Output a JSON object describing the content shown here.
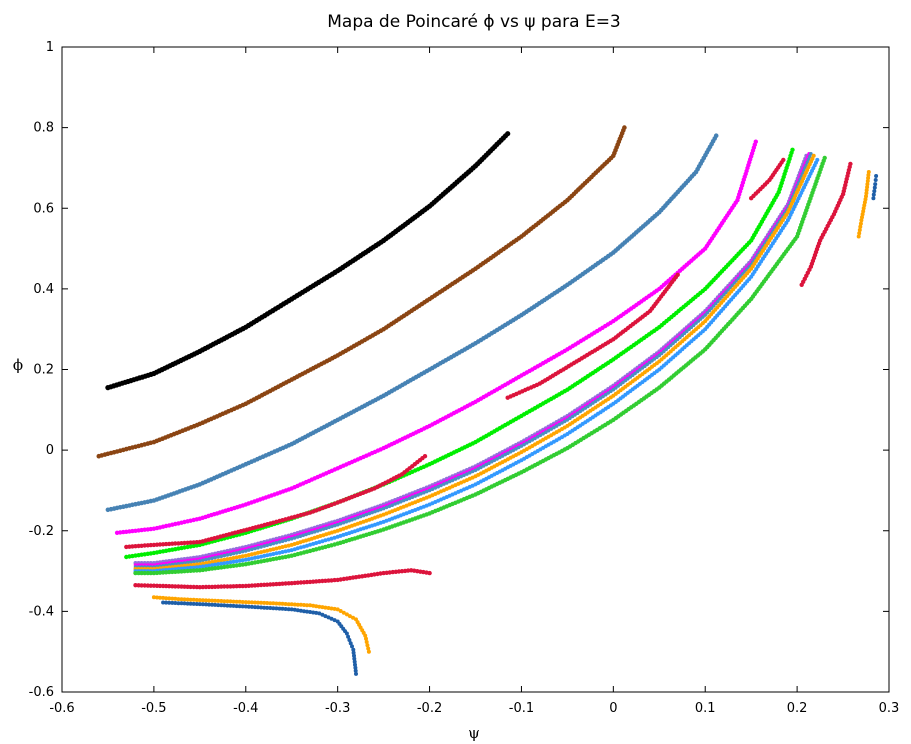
{
  "chart_data": {
    "type": "scatter",
    "title": "Mapa de Poincaré ϕ vs ψ para E=3",
    "xlabel": "ψ",
    "ylabel": "ϕ",
    "xlim": [
      -0.6,
      0.3
    ],
    "ylim": [
      -0.6,
      1.0
    ],
    "x_ticks": [
      -0.6,
      -0.5,
      -0.4,
      -0.3,
      -0.2,
      -0.1,
      0,
      0.1,
      0.2,
      0.3
    ],
    "x_tick_labels": [
      "-0.6",
      "-0.5",
      "-0.4",
      "-0.3",
      "-0.2",
      "-0.1",
      "0",
      "0.1",
      "0.2",
      "0.3"
    ],
    "y_ticks": [
      -0.6,
      -0.4,
      -0.2,
      0,
      0.2,
      0.4,
      0.6,
      0.8,
      1.0
    ],
    "y_tick_labels": [
      "-0.6",
      "-0.4",
      "-0.2",
      "0",
      "0.2",
      "0.4",
      "0.6",
      "0.8",
      "1"
    ],
    "grid": false,
    "legend": false,
    "series": [
      {
        "color": "#000000",
        "marker_size": 2.6,
        "points": [
          [
            -0.55,
            0.155
          ],
          [
            -0.5,
            0.19
          ],
          [
            -0.45,
            0.245
          ],
          [
            -0.4,
            0.305
          ],
          [
            -0.35,
            0.375
          ],
          [
            -0.3,
            0.445
          ],
          [
            -0.25,
            0.52
          ],
          [
            -0.2,
            0.605
          ],
          [
            -0.15,
            0.705
          ],
          [
            -0.115,
            0.785
          ]
        ]
      },
      {
        "color": "#8b4513",
        "marker_size": 2.3,
        "points": [
          [
            -0.56,
            -0.015
          ],
          [
            -0.5,
            0.02
          ],
          [
            -0.45,
            0.065
          ],
          [
            -0.4,
            0.115
          ],
          [
            -0.35,
            0.175
          ],
          [
            -0.3,
            0.235
          ],
          [
            -0.25,
            0.3
          ],
          [
            -0.2,
            0.375
          ],
          [
            -0.15,
            0.45
          ],
          [
            -0.1,
            0.53
          ],
          [
            -0.05,
            0.62
          ],
          [
            0.0,
            0.73
          ],
          [
            0.012,
            0.8
          ]
        ]
      },
      {
        "color": "#4682b4",
        "marker_size": 2.3,
        "points": [
          [
            -0.55,
            -0.148
          ],
          [
            -0.5,
            -0.125
          ],
          [
            -0.45,
            -0.085
          ],
          [
            -0.4,
            -0.035
          ],
          [
            -0.35,
            0.015
          ],
          [
            -0.3,
            0.075
          ],
          [
            -0.25,
            0.135
          ],
          [
            -0.2,
            0.2
          ],
          [
            -0.15,
            0.265
          ],
          [
            -0.1,
            0.335
          ],
          [
            -0.05,
            0.41
          ],
          [
            0.0,
            0.49
          ],
          [
            0.05,
            0.59
          ],
          [
            0.09,
            0.69
          ],
          [
            0.112,
            0.78
          ]
        ]
      },
      {
        "color": "#ff00ff",
        "marker_size": 2.2,
        "points": [
          [
            -0.54,
            -0.205
          ],
          [
            -0.5,
            -0.195
          ],
          [
            -0.45,
            -0.17
          ],
          [
            -0.4,
            -0.135
          ],
          [
            -0.35,
            -0.095
          ],
          [
            -0.3,
            -0.045
          ],
          [
            -0.25,
            0.005
          ],
          [
            -0.2,
            0.06
          ],
          [
            -0.15,
            0.12
          ],
          [
            -0.1,
            0.185
          ],
          [
            -0.05,
            0.25
          ],
          [
            0.0,
            0.32
          ],
          [
            0.05,
            0.4
          ],
          [
            0.1,
            0.5
          ],
          [
            0.135,
            0.62
          ],
          [
            0.155,
            0.765
          ]
        ]
      },
      {
        "color": "#00ee00",
        "marker_size": 2.2,
        "points": [
          [
            -0.53,
            -0.265
          ],
          [
            -0.5,
            -0.255
          ],
          [
            -0.45,
            -0.235
          ],
          [
            -0.4,
            -0.205
          ],
          [
            -0.35,
            -0.17
          ],
          [
            -0.3,
            -0.13
          ],
          [
            -0.25,
            -0.085
          ],
          [
            -0.2,
            -0.035
          ],
          [
            -0.15,
            0.02
          ],
          [
            -0.1,
            0.085
          ],
          [
            -0.05,
            0.15
          ],
          [
            0.0,
            0.225
          ],
          [
            0.05,
            0.305
          ],
          [
            0.1,
            0.4
          ],
          [
            0.15,
            0.52
          ],
          [
            0.18,
            0.64
          ],
          [
            0.195,
            0.745
          ]
        ]
      },
      {
        "color": "#9370db",
        "marker_size": 2.0,
        "points": [
          [
            -0.52,
            -0.28
          ],
          [
            -0.5,
            -0.28
          ],
          [
            -0.45,
            -0.265
          ],
          [
            -0.4,
            -0.24
          ],
          [
            -0.35,
            -0.21
          ],
          [
            -0.3,
            -0.175
          ],
          [
            -0.25,
            -0.135
          ],
          [
            -0.2,
            -0.09
          ],
          [
            -0.15,
            -0.04
          ],
          [
            -0.1,
            0.02
          ],
          [
            -0.05,
            0.085
          ],
          [
            0.0,
            0.16
          ],
          [
            0.05,
            0.245
          ],
          [
            0.1,
            0.345
          ],
          [
            0.15,
            0.47
          ],
          [
            0.19,
            0.61
          ],
          [
            0.21,
            0.73
          ]
        ]
      },
      {
        "color": "#ff00ff",
        "marker_size": 1.8,
        "points": [
          [
            -0.52,
            -0.285
          ],
          [
            -0.5,
            -0.285
          ],
          [
            -0.45,
            -0.27
          ],
          [
            -0.4,
            -0.245
          ],
          [
            -0.35,
            -0.215
          ],
          [
            -0.3,
            -0.18
          ],
          [
            -0.25,
            -0.14
          ],
          [
            -0.2,
            -0.095
          ],
          [
            -0.15,
            -0.045
          ],
          [
            -0.1,
            0.015
          ],
          [
            -0.05,
            0.08
          ],
          [
            0.0,
            0.155
          ],
          [
            0.05,
            0.24
          ],
          [
            0.1,
            0.34
          ],
          [
            0.15,
            0.465
          ],
          [
            0.19,
            0.605
          ],
          [
            0.213,
            0.735
          ]
        ]
      },
      {
        "color": "#4a90c2",
        "marker_size": 1.8,
        "points": [
          [
            -0.52,
            -0.29
          ],
          [
            -0.5,
            -0.29
          ],
          [
            -0.45,
            -0.275
          ],
          [
            -0.4,
            -0.25
          ],
          [
            -0.35,
            -0.22
          ],
          [
            -0.3,
            -0.185
          ],
          [
            -0.25,
            -0.145
          ],
          [
            -0.2,
            -0.1
          ],
          [
            -0.15,
            -0.05
          ],
          [
            -0.1,
            0.01
          ],
          [
            -0.05,
            0.075
          ],
          [
            0.0,
            0.15
          ],
          [
            0.05,
            0.235
          ],
          [
            0.1,
            0.335
          ],
          [
            0.15,
            0.46
          ],
          [
            0.19,
            0.6
          ],
          [
            0.215,
            0.735
          ]
        ]
      },
      {
        "color": "#ffa500",
        "marker_size": 2.0,
        "points": [
          [
            -0.52,
            -0.295
          ],
          [
            -0.5,
            -0.295
          ],
          [
            -0.45,
            -0.283
          ],
          [
            -0.4,
            -0.262
          ],
          [
            -0.35,
            -0.235
          ],
          [
            -0.3,
            -0.2
          ],
          [
            -0.25,
            -0.16
          ],
          [
            -0.2,
            -0.115
          ],
          [
            -0.15,
            -0.065
          ],
          [
            -0.1,
            -0.005
          ],
          [
            -0.05,
            0.06
          ],
          [
            0.0,
            0.135
          ],
          [
            0.05,
            0.22
          ],
          [
            0.1,
            0.32
          ],
          [
            0.15,
            0.45
          ],
          [
            0.19,
            0.59
          ],
          [
            0.218,
            0.73
          ]
        ]
      },
      {
        "color": "#3399ff",
        "marker_size": 2.0,
        "points": [
          [
            -0.52,
            -0.3
          ],
          [
            -0.5,
            -0.3
          ],
          [
            -0.45,
            -0.29
          ],
          [
            -0.4,
            -0.272
          ],
          [
            -0.35,
            -0.248
          ],
          [
            -0.3,
            -0.215
          ],
          [
            -0.25,
            -0.178
          ],
          [
            -0.2,
            -0.135
          ],
          [
            -0.15,
            -0.085
          ],
          [
            -0.1,
            -0.025
          ],
          [
            -0.05,
            0.04
          ],
          [
            0.0,
            0.115
          ],
          [
            0.05,
            0.2
          ],
          [
            0.1,
            0.3
          ],
          [
            0.15,
            0.43
          ],
          [
            0.19,
            0.57
          ],
          [
            0.222,
            0.72
          ]
        ]
      },
      {
        "color": "#32cd32",
        "marker_size": 2.2,
        "points": [
          [
            -0.52,
            -0.305
          ],
          [
            -0.5,
            -0.305
          ],
          [
            -0.45,
            -0.298
          ],
          [
            -0.4,
            -0.283
          ],
          [
            -0.35,
            -0.262
          ],
          [
            -0.3,
            -0.232
          ],
          [
            -0.25,
            -0.197
          ],
          [
            -0.2,
            -0.157
          ],
          [
            -0.15,
            -0.11
          ],
          [
            -0.1,
            -0.055
          ],
          [
            -0.05,
            0.005
          ],
          [
            0.0,
            0.075
          ],
          [
            0.05,
            0.155
          ],
          [
            0.1,
            0.25
          ],
          [
            0.15,
            0.375
          ],
          [
            0.2,
            0.53
          ],
          [
            0.23,
            0.725
          ]
        ]
      },
      {
        "color": "#dc143c",
        "marker_size": 2.2,
        "points": [
          [
            -0.53,
            -0.24
          ],
          [
            -0.5,
            -0.235
          ],
          [
            -0.45,
            -0.228
          ],
          [
            -0.37,
            -0.18
          ],
          [
            -0.33,
            -0.155
          ],
          [
            -0.3,
            -0.13
          ],
          [
            -0.26,
            -0.095
          ],
          [
            -0.23,
            -0.06
          ],
          [
            -0.205,
            -0.015
          ],
          [
            -0.115,
            0.13
          ],
          [
            -0.08,
            0.165
          ],
          [
            -0.04,
            0.22
          ],
          [
            0.0,
            0.275
          ],
          [
            0.04,
            0.345
          ],
          [
            0.07,
            0.435
          ],
          [
            -0.52,
            -0.335
          ],
          [
            -0.45,
            -0.34
          ],
          [
            -0.4,
            -0.337
          ],
          [
            -0.35,
            -0.33
          ],
          [
            -0.3,
            -0.322
          ],
          [
            -0.25,
            -0.305
          ],
          [
            -0.22,
            -0.298
          ],
          [
            -0.2,
            -0.305
          ],
          [
            0.15,
            0.625
          ],
          [
            0.17,
            0.67
          ],
          [
            0.185,
            0.72
          ],
          [
            0.205,
            0.41
          ],
          [
            0.215,
            0.455
          ],
          [
            0.225,
            0.52
          ],
          [
            0.24,
            0.585
          ],
          [
            0.25,
            0.635
          ],
          [
            0.258,
            0.71
          ]
        ]
      },
      {
        "color": "#ffa500",
        "marker_size": 2.0,
        "points": [
          [
            -0.5,
            -0.365
          ],
          [
            -0.47,
            -0.37
          ],
          [
            -0.42,
            -0.375
          ],
          [
            -0.37,
            -0.38
          ],
          [
            -0.33,
            -0.385
          ],
          [
            -0.3,
            -0.395
          ],
          [
            -0.28,
            -0.42
          ],
          [
            -0.27,
            -0.46
          ],
          [
            -0.266,
            -0.5
          ],
          [
            0.267,
            0.53
          ],
          [
            0.27,
            0.57
          ],
          [
            0.275,
            0.63
          ],
          [
            0.278,
            0.69
          ]
        ]
      },
      {
        "color": "#1f5fa8",
        "marker_size": 2.0,
        "points": [
          [
            -0.49,
            -0.378
          ],
          [
            -0.45,
            -0.382
          ],
          [
            -0.4,
            -0.388
          ],
          [
            -0.35,
            -0.395
          ],
          [
            -0.32,
            -0.405
          ],
          [
            -0.3,
            -0.425
          ],
          [
            -0.29,
            -0.455
          ],
          [
            -0.283,
            -0.495
          ],
          [
            -0.28,
            -0.555
          ],
          [
            0.283,
            0.625
          ],
          [
            0.285,
            0.66
          ],
          [
            0.286,
            0.68
          ]
        ]
      }
    ]
  }
}
